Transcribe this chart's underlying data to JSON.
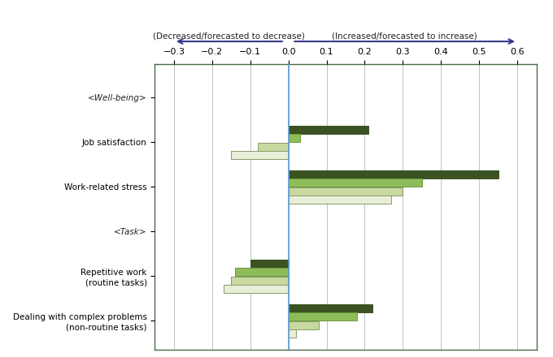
{
  "categories": [
    "<Well-being>",
    "Job satisfaction",
    "Work-related stress",
    "<Task>",
    "Repetitive work\n(routine tasks)",
    "Dealing with complex problems\n(non-routine tasks)"
  ],
  "series": {
    "AI already adopted": [
      null,
      0.21,
      0.55,
      null,
      -0.1,
      0.22
    ],
    "AI adoption planned": [
      null,
      0.03,
      0.35,
      null,
      -0.14,
      0.18
    ],
    "Using/planning to use some other new information technologies": [
      null,
      -0.08,
      0.3,
      null,
      -0.15,
      0.08
    ],
    "Not used at all/no plans to use": [
      null,
      -0.15,
      0.27,
      null,
      -0.17,
      0.02
    ]
  },
  "series_colors": {
    "AI already adopted": "#3b5323",
    "AI adoption planned": "#8fbc5a",
    "Using/planning to use some other new information technologies": "#c8d9a0",
    "Not used at all/no plans to use": "#e8efd8"
  },
  "series_edge_colors": {
    "AI already adopted": "#3b5323",
    "AI adoption planned": "#6a9a3a",
    "Using/planning to use some other new information technologies": "#8a9a6a",
    "Not used at all/no plans to use": "#8a9a6a"
  },
  "xlim": [
    -0.35,
    0.65
  ],
  "xticks": [
    -0.3,
    -0.2,
    -0.1,
    0.0,
    0.1,
    0.2,
    0.3,
    0.4,
    0.5,
    0.6
  ],
  "xlabel_decreased": "(Decreased/forecasted to decrease)",
  "xlabel_increased": "(Increased/forecasted to increase)",
  "bar_height": 0.18,
  "bar_spacing": 0.19,
  "zero_line_color": "#5b9bd5",
  "grid_color": "#aaaaaa",
  "box_edge_color": "#4a6a4a",
  "header_color": "#3b5323",
  "background_color": "#ffffff"
}
